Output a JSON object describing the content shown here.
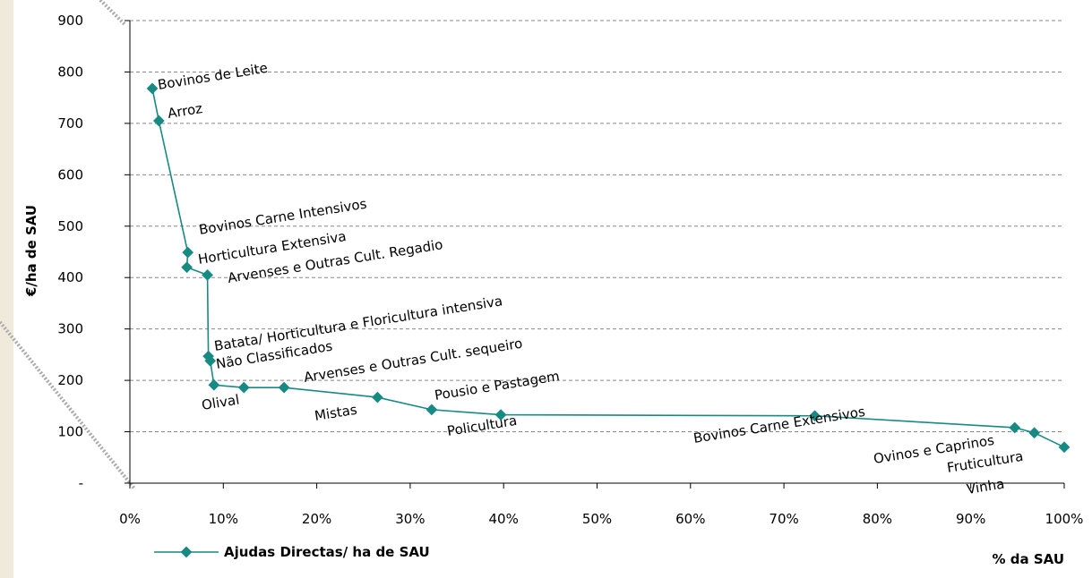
{
  "chart_data": {
    "type": "line",
    "xlabel": "% da SAU",
    "ylabel": "€/ha de SAU",
    "x": [
      2.4,
      3.1,
      6.2,
      6.1,
      8.3,
      8.4,
      8.6,
      9.0,
      12.2,
      16.5,
      26.5,
      32.3,
      39.7,
      73.3,
      94.7,
      96.8,
      100
    ],
    "point_labels": [
      "Bovinos de Leite",
      "Arroz",
      "Bovinos Carne Intensivos",
      "Horticultura Extensiva",
      "Arvenses e Outras Cult. Regadio",
      "Batata/ Horticultura e Floricultura intensiva",
      "Não Classificados",
      "Olival",
      null,
      "Arvenses e Outras Cult. sequeiro",
      "Mistas",
      "Pousio e Pastagem",
      "Policultura",
      "Bovinos Carne Extensivos",
      "Ovinos e Caprinos",
      "Fruticultura",
      "Vinha"
    ],
    "series": [
      {
        "name": "Ajudas Directas/ ha de SAU",
        "color": "#178a84",
        "values": [
          768,
          705,
          449,
          420,
          405,
          247,
          238,
          191,
          186,
          186,
          167,
          143,
          133,
          131,
          108,
          98,
          70
        ]
      }
    ],
    "xlim": [
      0,
      100
    ],
    "xticks": [
      {
        "value": 0,
        "label": "0%"
      },
      {
        "value": 10,
        "label": "10%"
      },
      {
        "value": 20,
        "label": "20%"
      },
      {
        "value": 30,
        "label": "30%"
      },
      {
        "value": 40,
        "label": "40%"
      },
      {
        "value": 50,
        "label": "50%"
      },
      {
        "value": 60,
        "label": "60%"
      },
      {
        "value": 70,
        "label": "70%"
      },
      {
        "value": 80,
        "label": "80%"
      },
      {
        "value": 90,
        "label": "90%"
      },
      {
        "value": 100,
        "label": "100%"
      }
    ],
    "ylim": [
      0,
      900
    ],
    "yticks": [
      {
        "value": 0,
        "label": "-"
      },
      100,
      200,
      300,
      400,
      500,
      600,
      700,
      800,
      900
    ],
    "grid": true
  }
}
